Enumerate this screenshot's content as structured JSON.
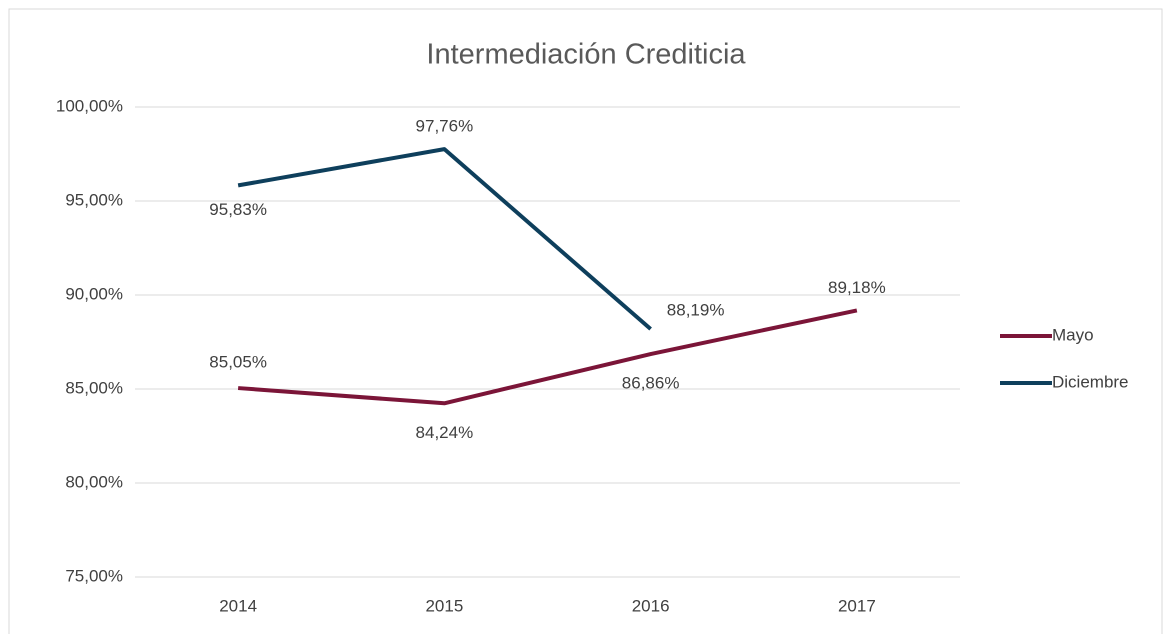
{
  "chart_data": {
    "type": "line",
    "title": "Intermediación Crediticia",
    "categories": [
      "2014",
      "2015",
      "2016",
      "2017"
    ],
    "series": [
      {
        "name": "Mayo",
        "color": "#7b1538",
        "values": [
          85.05,
          84.24,
          86.86,
          89.18
        ],
        "value_labels": [
          "85,05%",
          "84,24%",
          "86,86%",
          "89,18%"
        ]
      },
      {
        "name": "Diciembre",
        "color": "#0e3f5c",
        "values": [
          95.83,
          97.76,
          88.19,
          null
        ],
        "value_labels": [
          "95,83%",
          "97,76%",
          "88,19%",
          null
        ]
      }
    ],
    "ylim": [
      75,
      100
    ],
    "yticks": [
      {
        "value": 75,
        "label": "75,00%"
      },
      {
        "value": 80,
        "label": "80,00%"
      },
      {
        "value": 85,
        "label": "85,00%"
      },
      {
        "value": 90,
        "label": "90,00%"
      },
      {
        "value": 95,
        "label": "95,00%"
      },
      {
        "value": 100,
        "label": "100,00%"
      }
    ],
    "grid": true,
    "legend": "right"
  }
}
